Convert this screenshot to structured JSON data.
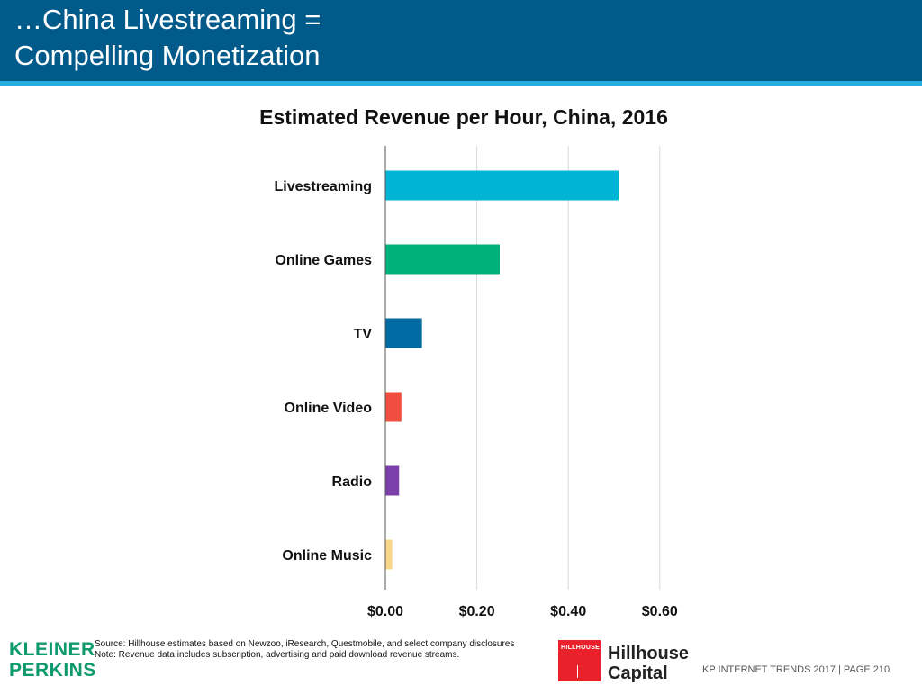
{
  "header": {
    "title_line1": "…China Livestreaming =",
    "title_line2": "Compelling Monetization"
  },
  "chart_data": {
    "type": "bar",
    "orientation": "horizontal",
    "title": "Estimated Revenue per Hour, China, 2016",
    "categories": [
      "Livestreaming",
      "Online Games",
      "TV",
      "Online Video",
      "Radio",
      "Online Music"
    ],
    "values": [
      0.51,
      0.25,
      0.08,
      0.035,
      0.03,
      0.015
    ],
    "colors": [
      "#00b4d6",
      "#00b27a",
      "#006aa3",
      "#f04e3e",
      "#7a3fa8",
      "#f7d68b"
    ],
    "x_ticks": [
      0,
      0.2,
      0.4,
      0.6
    ],
    "x_tick_labels": [
      "$0.00",
      "$0.20",
      "$0.40",
      "$0.60"
    ],
    "xlim": [
      0,
      0.6
    ],
    "grid": true,
    "legend": "none"
  },
  "footer": {
    "brand_line1": "KLEINER",
    "brand_line2": "PERKINS",
    "source": "Source: Hillhouse estimates based on Newzoo, iResearch, Questmobile, and select company disclosures",
    "note": "Note: Revenue data includes subscription, advertising and paid download revenue streams.",
    "hillhouse_logo_text": "HILLHOUSE",
    "hillhouse_line1": "Hillhouse",
    "hillhouse_line2": "Capital",
    "page_ref": "KP INTERNET TRENDS 2017   |   PAGE 210",
    "brand_color": "#0f9a6e",
    "hillhouse_color": "#e8212b"
  }
}
